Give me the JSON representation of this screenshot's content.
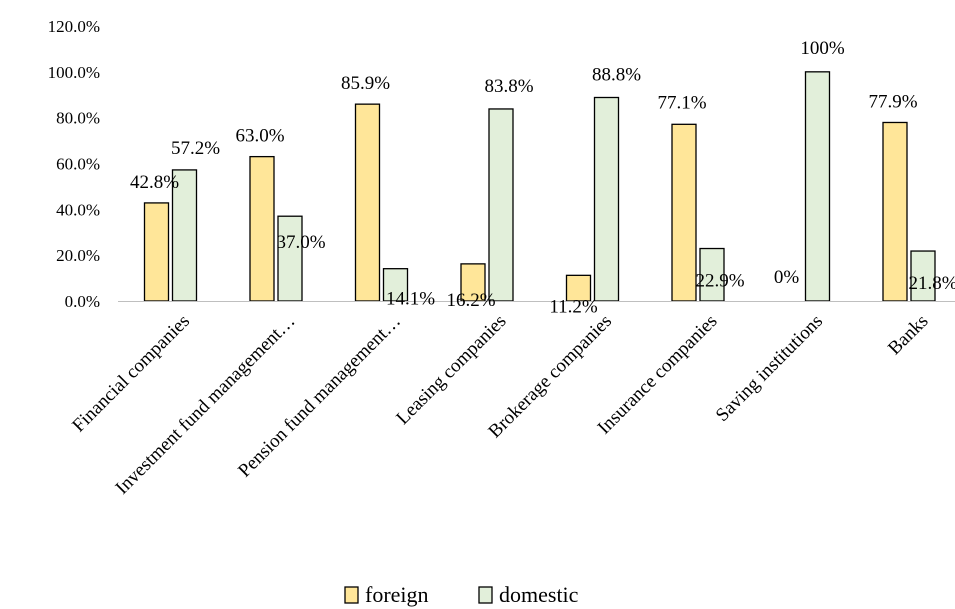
{
  "chart_data": {
    "type": "bar",
    "title": "",
    "xlabel": "",
    "ylabel": "",
    "ylim": [
      0,
      120
    ],
    "yticks": [
      "0.0%",
      "20.0%",
      "40.0%",
      "60.0%",
      "80.0%",
      "100.0%",
      "120.0%"
    ],
    "grid": false,
    "legend_position": "bottom",
    "categories": [
      "Financial companies",
      "Investment fund management…",
      "Pension fund management…",
      "Leasing companies",
      "Brokerage companies",
      "Insurance companies",
      "Saving institutions",
      "Banks"
    ],
    "series": [
      {
        "name": "foreign",
        "color": "#FFE699",
        "values": [
          42.8,
          63.0,
          85.9,
          16.2,
          11.2,
          77.1,
          0,
          77.9
        ],
        "labels": [
          "42.8%",
          "63.0%",
          "85.9%",
          "16.2%",
          "11.2%",
          "77.1%",
          "0%",
          "77.9%"
        ]
      },
      {
        "name": "domestic",
        "color": "#E2EFDA",
        "values": [
          57.2,
          37.0,
          14.1,
          83.8,
          88.8,
          22.9,
          100,
          21.8
        ],
        "labels": [
          "57.2%",
          "37.0%",
          "14.1%",
          "83.8%",
          "88.8%",
          "22.9%",
          "100%",
          "21.8%"
        ]
      }
    ]
  }
}
